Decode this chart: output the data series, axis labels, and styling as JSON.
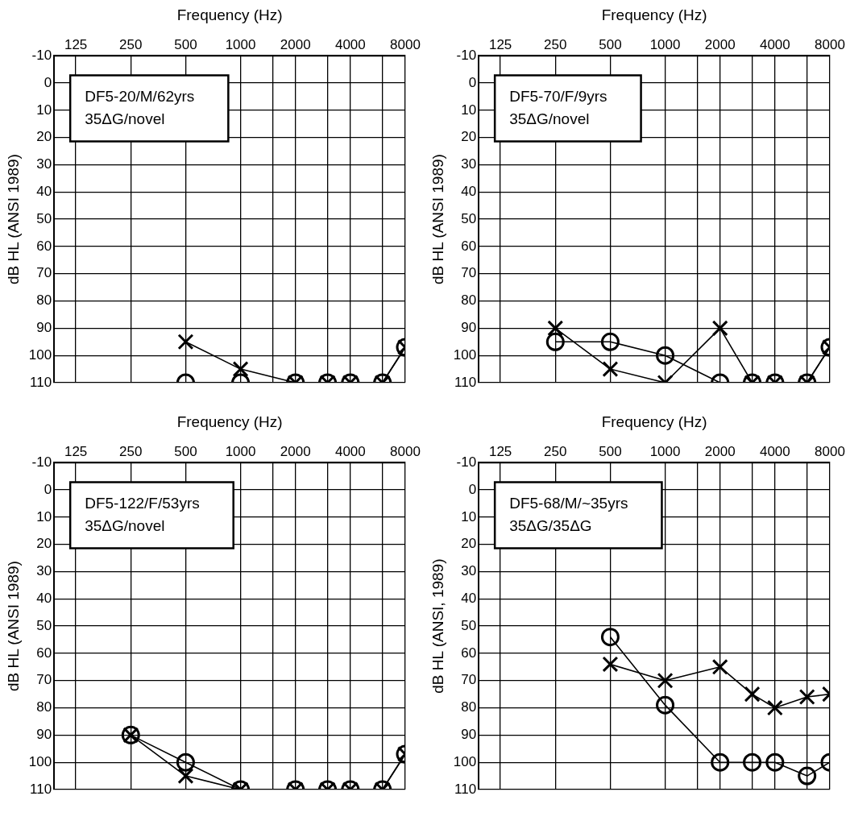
{
  "chart_data": [
    {
      "type": "line",
      "xlabel": "Frequency (Hz)",
      "ylabel": "dB HL (ANSI 1989)",
      "annotations": [
        "DF5-20/M/62yrs",
        "35ΔG/novel"
      ],
      "log": "x",
      "grid": true,
      "xlim": [
        95,
        8000
      ],
      "xticks": [
        125,
        250,
        500,
        1000,
        {
          "value": 1500,
          "label": null
        },
        2000,
        {
          "value": 3000,
          "label": null
        },
        4000,
        {
          "value": 6000,
          "label": null
        },
        8000
      ],
      "ylim": [
        110,
        -10
      ],
      "yticks": [
        -10,
        0,
        10,
        20,
        30,
        40,
        50,
        60,
        70,
        80,
        90,
        100,
        110
      ],
      "series": [
        {
          "color": "#000000",
          "marker": "circle",
          "x": [
            500,
            1000,
            2000,
            3000,
            4000,
            6000,
            8000
          ],
          "values": [
            110,
            110,
            110,
            110,
            110,
            110,
            97
          ]
        },
        {
          "color": "#000000",
          "marker": "cross",
          "x": [
            500,
            1000,
            2000,
            3000,
            4000,
            6000,
            8000
          ],
          "values": [
            95,
            105,
            110,
            110,
            110,
            110,
            97
          ]
        }
      ]
    },
    {
      "type": "line",
      "xlabel": "Frequency (Hz)",
      "ylabel": "dB HL (ANSI 1989)",
      "annotations": [
        "DF5-70/F/9yrs",
        "35ΔG/novel"
      ],
      "log": "x",
      "grid": true,
      "xlim": [
        95,
        8000
      ],
      "xticks": [
        125,
        250,
        500,
        1000,
        {
          "value": 1500,
          "label": null
        },
        2000,
        {
          "value": 3000,
          "label": null
        },
        4000,
        {
          "value": 6000,
          "label": null
        },
        8000
      ],
      "ylim": [
        110,
        -10
      ],
      "yticks": [
        -10,
        0,
        10,
        20,
        30,
        40,
        50,
        60,
        70,
        80,
        90,
        100,
        110
      ],
      "series": [
        {
          "color": "#000000",
          "marker": "circle",
          "x": [
            250,
            500,
            1000,
            2000,
            3000,
            4000,
            6000,
            8000
          ],
          "values": [
            95,
            95,
            100,
            110,
            110,
            110,
            110,
            97
          ]
        },
        {
          "color": "#000000",
          "marker": "cross",
          "x": [
            250,
            500,
            1000,
            2000,
            3000,
            4000,
            6000,
            8000
          ],
          "values": [
            90,
            105,
            110,
            90,
            110,
            110,
            110,
            97
          ]
        }
      ]
    },
    {
      "type": "line",
      "xlabel": "Frequency (Hz)",
      "ylabel": "dB HL (ANSI 1989)",
      "annotations": [
        "DF5-122/F/53yrs",
        "35ΔG/novel"
      ],
      "log": "x",
      "grid": true,
      "xlim": [
        95,
        8000
      ],
      "xticks": [
        125,
        250,
        500,
        1000,
        {
          "value": 1500,
          "label": null
        },
        2000,
        {
          "value": 3000,
          "label": null
        },
        4000,
        {
          "value": 6000,
          "label": null
        },
        8000
      ],
      "ylim": [
        110,
        -10
      ],
      "yticks": [
        -10,
        0,
        10,
        20,
        30,
        40,
        50,
        60,
        70,
        80,
        90,
        100,
        110
      ],
      "series": [
        {
          "color": "#000000",
          "marker": "circle",
          "x": [
            250,
            500,
            1000,
            2000,
            3000,
            4000,
            6000,
            8000
          ],
          "values": [
            90,
            100,
            110,
            110,
            110,
            110,
            110,
            97
          ]
        },
        {
          "color": "#000000",
          "marker": "cross",
          "x": [
            250,
            500,
            1000,
            2000,
            3000,
            4000,
            6000,
            8000
          ],
          "values": [
            90,
            105,
            110,
            110,
            110,
            110,
            110,
            97
          ]
        }
      ]
    },
    {
      "type": "line",
      "xlabel": "Frequency (Hz)",
      "ylabel": "dB HL (ANSI, 1989)",
      "annotations": [
        "DF5-68/M/~35yrs",
        "35ΔG/35ΔG"
      ],
      "log": "x",
      "grid": true,
      "xlim": [
        95,
        8000
      ],
      "xticks": [
        125,
        250,
        500,
        1000,
        {
          "value": 1500,
          "label": null
        },
        2000,
        {
          "value": 3000,
          "label": null
        },
        4000,
        {
          "value": 6000,
          "label": null
        },
        8000
      ],
      "ylim": [
        110,
        -10
      ],
      "yticks": [
        -10,
        0,
        10,
        20,
        30,
        40,
        50,
        60,
        70,
        80,
        90,
        100,
        110
      ],
      "series": [
        {
          "color": "#000000",
          "marker": "circle",
          "x": [
            500,
            1000,
            2000,
            3000,
            4000,
            6000,
            8000
          ],
          "values": [
            54,
            79,
            100,
            100,
            100,
            105,
            100
          ]
        },
        {
          "color": "#000000",
          "marker": "cross",
          "x": [
            500,
            1000,
            2000,
            3000,
            4000,
            6000,
            8000
          ],
          "values": [
            64,
            70,
            65,
            75,
            80,
            76,
            75
          ]
        }
      ]
    }
  ]
}
